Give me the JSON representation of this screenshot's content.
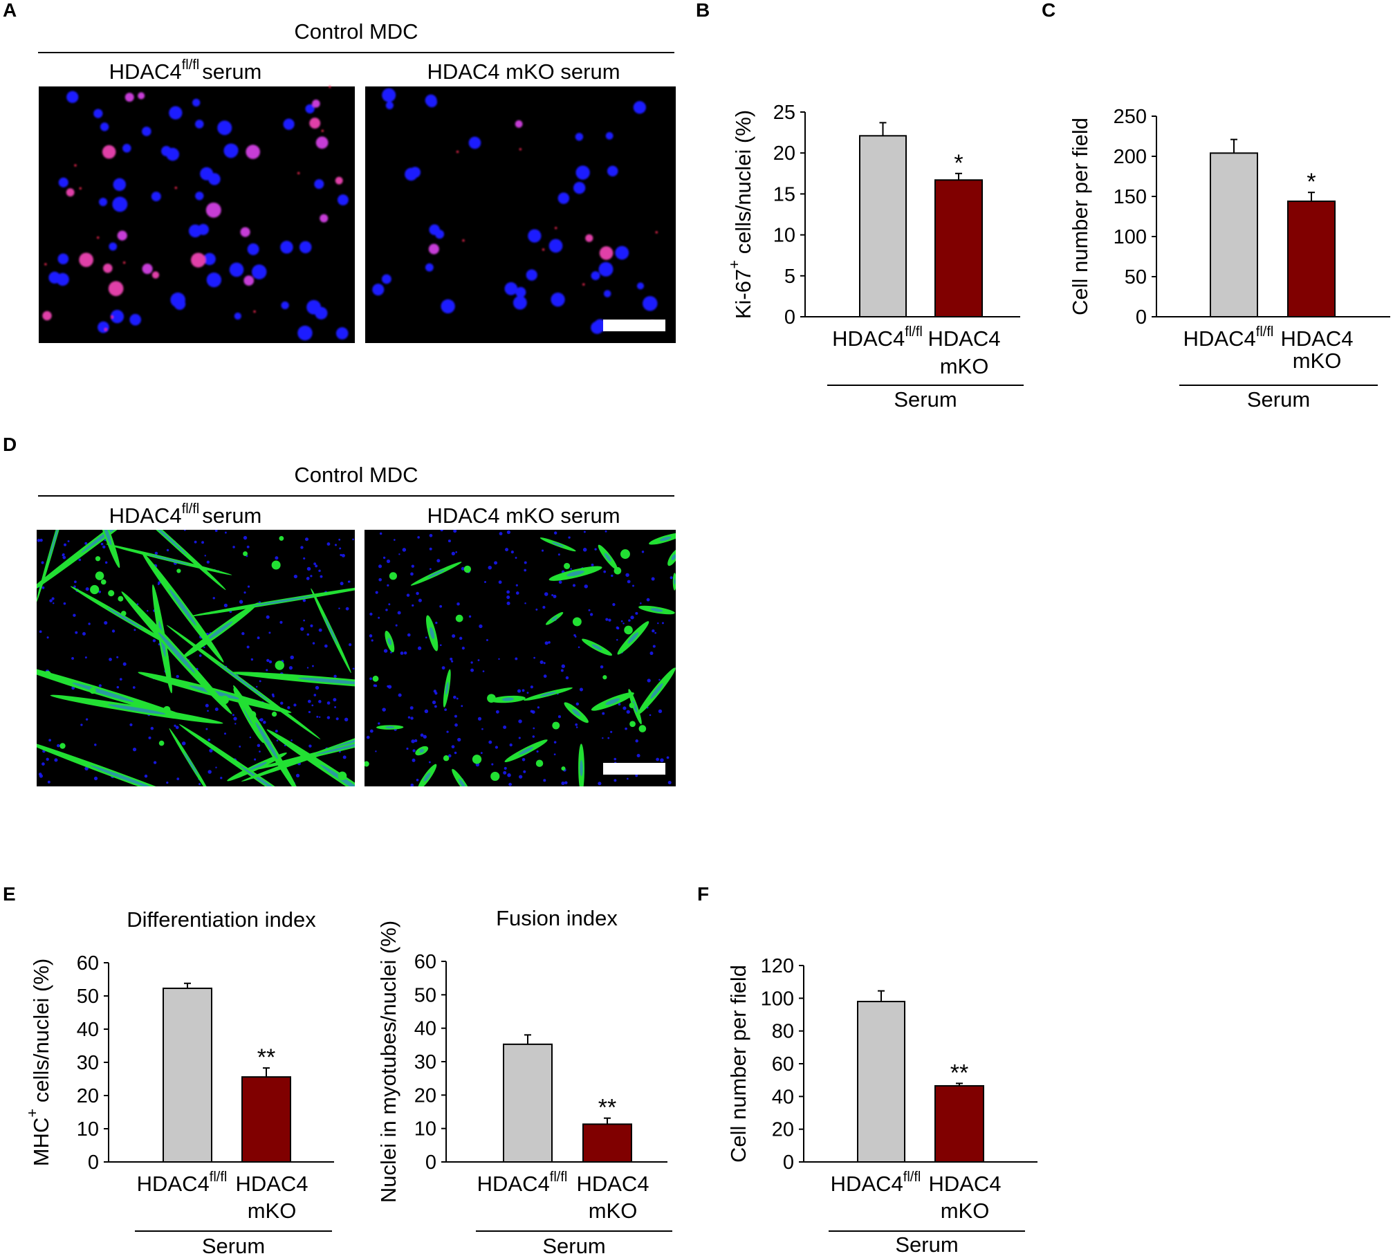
{
  "panels": {
    "A": {
      "letter": "A",
      "group_label": "Control MDC",
      "col1_label": "HDAC4",
      "col1_sup": "fl/fl",
      "col1_suffix": "serum",
      "col2_label": "HDAC4 mKO serum",
      "stain": "Ki-67 red, nuclei blue"
    },
    "D": {
      "letter": "D",
      "group_label": "Control MDC",
      "col1_label": "HDAC4",
      "col1_sup": "fl/fl",
      "col1_suffix": "serum",
      "col2_label": "HDAC4 mKO serum",
      "stain": "MHC green, nuclei blue"
    }
  },
  "colors": {
    "bar_control": "#c8c8c8",
    "bar_mko": "#800000",
    "image_bg": "#000000",
    "nuclei": "#1a1aff",
    "ki67": "#ff2a55",
    "mhc": "#22e033"
  },
  "chart_data": [
    {
      "id": "B",
      "letter": "B",
      "type": "bar",
      "title": "",
      "ylabel_sup": "+",
      "ylabel": "Ki-67 cells/nuclei (%)",
      "ylim": [
        0,
        25
      ],
      "yticks": [
        0,
        5,
        10,
        15,
        20,
        25
      ],
      "cat1": "HDAC4",
      "cat1_sup": "fl/fl",
      "cat2a": "HDAC4",
      "cat2b": "mKO",
      "group_label": "Serum",
      "values": [
        22.1,
        16.7
      ],
      "errors": [
        1.6,
        0.8
      ],
      "significance": "*"
    },
    {
      "id": "C",
      "letter": "C",
      "type": "bar",
      "title": "",
      "ylabel_sup": "",
      "ylabel": "Cell number per field",
      "ylim": [
        0,
        250
      ],
      "yticks": [
        0,
        50,
        100,
        150,
        200,
        250
      ],
      "cat1": "HDAC4",
      "cat1_sup": "fl/fl",
      "cat2a": "HDAC4",
      "cat2b": "mKO",
      "group_label": "Serum",
      "values": [
        204,
        144
      ],
      "errors": [
        17,
        11
      ],
      "significance": "*"
    },
    {
      "id": "E1",
      "letter": "E",
      "type": "bar",
      "title": "Differentiation index",
      "ylabel_sup": "+",
      "ylabel": "MHC cells/nuclei (%)",
      "ylim": [
        0,
        60
      ],
      "yticks": [
        0,
        10,
        20,
        30,
        40,
        50,
        60
      ],
      "cat1": "HDAC4",
      "cat1_sup": "fl/fl",
      "cat2a": "HDAC4",
      "cat2b": "mKO",
      "group_label": "Serum",
      "values": [
        52.3,
        25.6
      ],
      "errors": [
        1.5,
        2.7
      ],
      "significance": "**"
    },
    {
      "id": "E2",
      "letter": "",
      "type": "bar",
      "title": "Fusion index",
      "ylabel_sup": "",
      "ylabel": "Nuclei in myotubes/nuclei (%)",
      "ylim": [
        0,
        60
      ],
      "yticks": [
        0,
        10,
        20,
        30,
        40,
        50,
        60
      ],
      "cat1": "HDAC4",
      "cat1_sup": "fl/fl",
      "cat2a": "HDAC4",
      "cat2b": "mKO",
      "group_label": "Serum",
      "values": [
        35.2,
        11.3
      ],
      "errors": [
        2.8,
        1.8
      ],
      "significance": "**"
    },
    {
      "id": "F",
      "letter": "F",
      "type": "bar",
      "title": "",
      "ylabel_sup": "",
      "ylabel": "Cell number per field",
      "ylim": [
        0,
        120
      ],
      "yticks": [
        0,
        20,
        40,
        60,
        80,
        100,
        120
      ],
      "cat1": "HDAC4",
      "cat1_sup": "fl/fl",
      "cat2a": "HDAC4",
      "cat2b": "mKO",
      "group_label": "Serum",
      "values": [
        98,
        46.5
      ],
      "errors": [
        6.5,
        1.5
      ],
      "significance": "**"
    }
  ]
}
